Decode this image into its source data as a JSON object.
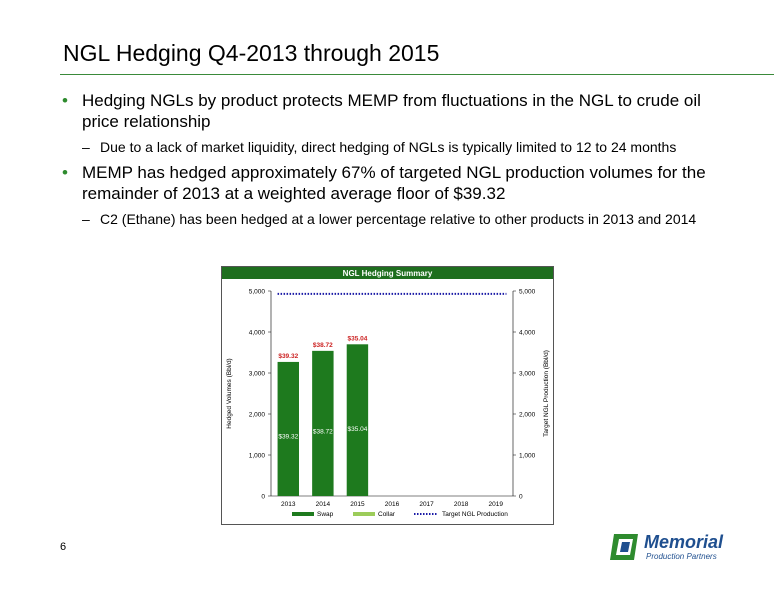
{
  "slide": {
    "title": "NGL Hedging Q4-2013 through 2015",
    "bullets": [
      {
        "text": "Hedging NGLs by product protects MEMP from fluctuations in the NGL to crude oil price relationship",
        "sub": [
          "Due to a lack of market liquidity, direct hedging of NGLs is typically limited to 12 to 24 months"
        ]
      },
      {
        "text": "MEMP has hedged approximately 67% of targeted NGL production volumes for the remainder of 2013 at a weighted average floor of $39.32",
        "sub": [
          "C2 (Ethane) has been hedged at a lower percentage relative to other products in 2013 and 2014"
        ]
      }
    ],
    "page_number": "6",
    "logo": {
      "name": "Memorial",
      "subtitle": "Production Partners"
    }
  },
  "colors": {
    "header_green": "#1e6e1e",
    "swap": "#1e7a1e",
    "collar": "#9ccc5a",
    "target_line": "#1a1aa6",
    "price_red": "#cc2222",
    "accent_rule": "#3a8a3a"
  },
  "chart_data": {
    "type": "bar",
    "title": "NGL Hedging Summary",
    "categories": [
      "2013",
      "2014",
      "2015",
      "2016",
      "2017",
      "2018",
      "2019"
    ],
    "series": [
      {
        "name": "Swap",
        "values": [
          3270,
          3540,
          3700,
          0,
          0,
          0,
          0
        ]
      },
      {
        "name": "Collar",
        "values": [
          0,
          0,
          0,
          0,
          0,
          0,
          0
        ]
      }
    ],
    "line_series": {
      "name": "Target NGL Production",
      "values": [
        4930,
        4930,
        4930,
        4930,
        4930,
        4930,
        4930
      ],
      "style": "dotted"
    },
    "top_labels": [
      "$39.32",
      "$38.72",
      "$35.04"
    ],
    "inner_labels": [
      "$39.32",
      "$38.72",
      "$35.04"
    ],
    "ylabel": "Hedged Volumes (Bbl/d)",
    "y2label": "Target NGL Production (Bbl/d)",
    "ylim": [
      0,
      5000
    ],
    "yticks": [
      "0",
      "1,000",
      "2,000",
      "3,000",
      "4,000",
      "5,000"
    ],
    "legend_position": "bottom",
    "grid": false
  }
}
